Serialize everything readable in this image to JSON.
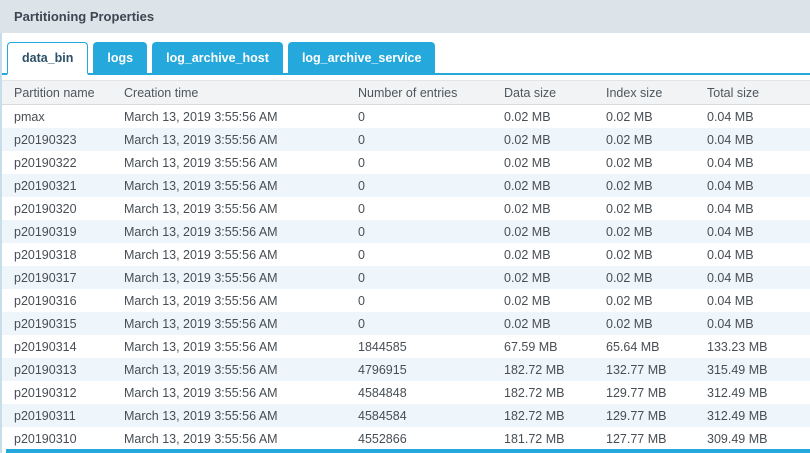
{
  "panel": {
    "title": "Partitioning Properties"
  },
  "tabs": [
    {
      "label": "data_bin",
      "active": true
    },
    {
      "label": "logs",
      "active": false
    },
    {
      "label": "log_archive_host",
      "active": false
    },
    {
      "label": "log_archive_service",
      "active": false
    }
  ],
  "table": {
    "columns": [
      "Partition name",
      "Creation time",
      "Number of entries",
      "Data size",
      "Index size",
      "Total size"
    ],
    "rows": [
      {
        "name": "pmax",
        "creation_time": "March 13, 2019 3:55:56 AM",
        "entries": "0",
        "data_size": "0.02 MB",
        "index_size": "0.02 MB",
        "total_size": "0.04 MB"
      },
      {
        "name": "p20190323",
        "creation_time": "March 13, 2019 3:55:56 AM",
        "entries": "0",
        "data_size": "0.02 MB",
        "index_size": "0.02 MB",
        "total_size": "0.04 MB"
      },
      {
        "name": "p20190322",
        "creation_time": "March 13, 2019 3:55:56 AM",
        "entries": "0",
        "data_size": "0.02 MB",
        "index_size": "0.02 MB",
        "total_size": "0.04 MB"
      },
      {
        "name": "p20190321",
        "creation_time": "March 13, 2019 3:55:56 AM",
        "entries": "0",
        "data_size": "0.02 MB",
        "index_size": "0.02 MB",
        "total_size": "0.04 MB"
      },
      {
        "name": "p20190320",
        "creation_time": "March 13, 2019 3:55:56 AM",
        "entries": "0",
        "data_size": "0.02 MB",
        "index_size": "0.02 MB",
        "total_size": "0.04 MB"
      },
      {
        "name": "p20190319",
        "creation_time": "March 13, 2019 3:55:56 AM",
        "entries": "0",
        "data_size": "0.02 MB",
        "index_size": "0.02 MB",
        "total_size": "0.04 MB"
      },
      {
        "name": "p20190318",
        "creation_time": "March 13, 2019 3:55:56 AM",
        "entries": "0",
        "data_size": "0.02 MB",
        "index_size": "0.02 MB",
        "total_size": "0.04 MB"
      },
      {
        "name": "p20190317",
        "creation_time": "March 13, 2019 3:55:56 AM",
        "entries": "0",
        "data_size": "0.02 MB",
        "index_size": "0.02 MB",
        "total_size": "0.04 MB"
      },
      {
        "name": "p20190316",
        "creation_time": "March 13, 2019 3:55:56 AM",
        "entries": "0",
        "data_size": "0.02 MB",
        "index_size": "0.02 MB",
        "total_size": "0.04 MB"
      },
      {
        "name": "p20190315",
        "creation_time": "March 13, 2019 3:55:56 AM",
        "entries": "0",
        "data_size": "0.02 MB",
        "index_size": "0.02 MB",
        "total_size": "0.04 MB"
      },
      {
        "name": "p20190314",
        "creation_time": "March 13, 2019 3:55:56 AM",
        "entries": "1844585",
        "data_size": "67.59 MB",
        "index_size": "65.64 MB",
        "total_size": "133.23 MB"
      },
      {
        "name": "p20190313",
        "creation_time": "March 13, 2019 3:55:56 AM",
        "entries": "4796915",
        "data_size": "182.72 MB",
        "index_size": "132.77 MB",
        "total_size": "315.49 MB"
      },
      {
        "name": "p20190312",
        "creation_time": "March 13, 2019 3:55:56 AM",
        "entries": "4584848",
        "data_size": "182.72 MB",
        "index_size": "129.77 MB",
        "total_size": "312.49 MB"
      },
      {
        "name": "p20190311",
        "creation_time": "March 13, 2019 3:55:56 AM",
        "entries": "4584584",
        "data_size": "182.72 MB",
        "index_size": "129.77 MB",
        "total_size": "312.49 MB"
      },
      {
        "name": "p20190310",
        "creation_time": "March 13, 2019 3:55:56 AM",
        "entries": "4552866",
        "data_size": "181.72 MB",
        "index_size": "127.77 MB",
        "total_size": "309.49 MB"
      }
    ]
  },
  "colors": {
    "accent": "#25a8db",
    "accent-dark": "#2d5068",
    "titlebar-bg": "#dce3e9",
    "title-text": "#3c4650",
    "header-bg": "#f2f3f4",
    "header-text": "#4d565e",
    "cell-text": "#474e54",
    "stripe": "#eef6fb",
    "panel-border": "#c7dde9"
  }
}
